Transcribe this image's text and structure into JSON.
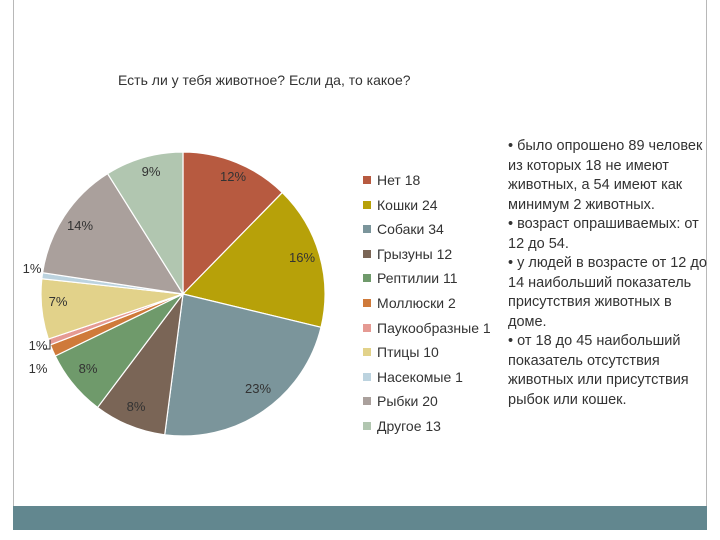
{
  "chart_data": {
    "type": "pie",
    "title": "Есть ли у тебя животное? Если да, то какое?",
    "slices": [
      {
        "label": "Нет",
        "value": 18,
        "display": "Нет 18",
        "pct": "12%",
        "color": "#b75a40"
      },
      {
        "label": "Кошки",
        "value": 24,
        "display": "Кошки 24",
        "pct": "16%",
        "color": "#b7a109"
      },
      {
        "label": "Собаки",
        "value": 34,
        "display": "Собаки 34",
        "pct": "23%",
        "color": "#7b959b"
      },
      {
        "label": "Грызуны",
        "value": 12,
        "display": "Грызуны 12",
        "pct": "8%",
        "color": "#7a6556"
      },
      {
        "label": "Рептилии",
        "value": 11,
        "display": "Рептилии 11",
        "pct": "8%",
        "color": "#6f9a6b"
      },
      {
        "label": "Моллюски",
        "value": 2,
        "display": "Моллюски 2",
        "pct": "1%",
        "color": "#cf7a3a"
      },
      {
        "label": "Паукообразные",
        "value": 1,
        "display": "Паукообразные 1",
        "pct": "1%",
        "color": "#e59a93"
      },
      {
        "label": "Птицы",
        "value": 10,
        "display": "Птицы 10",
        "pct": "7%",
        "color": "#e2d28a"
      },
      {
        "label": "Насекомые",
        "value": 1,
        "display": "Насекомые 1",
        "pct": "1%",
        "color": "#bcd3df"
      },
      {
        "label": "Рыбки",
        "value": 20,
        "display": "Рыбки 20",
        "pct": "14%",
        "color": "#aaa09c"
      },
      {
        "label": "Другое",
        "value": 13,
        "display": "Другое 13",
        "pct": "9%",
        "color": "#b1c6b0"
      }
    ],
    "legend_position": "right"
  },
  "notes": [
    "• было опрошено 89 человек из которых 18 не имеют животных, а 54 имеют как минимум 2 животных.",
    "• возраст опрашиваемых: от 12 до 54.",
    "• у людей в возрасте от 12 до 14 наибольший показатель присутствия животных в доме.",
    "• от 18 до 45 наибольший показатель отсутствия животных или присутствия рыбок или кошек."
  ]
}
